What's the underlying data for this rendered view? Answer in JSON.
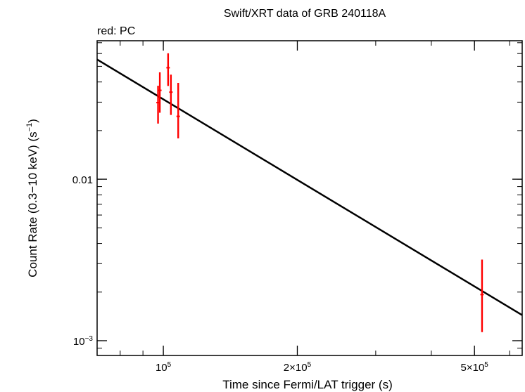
{
  "chart_data": {
    "type": "scatter",
    "title": "Swift/XRT data of GRB 240118A",
    "subtitle": "red: PC",
    "xlabel": "Time since Fermi/LAT trigger (s)",
    "ylabel": "Count Rate (0.3−10 keV) (s",
    "ylabel_sup": "−1",
    "ylabel_end": ")",
    "x_scale": "log",
    "y_scale": "log",
    "xlim": [
      71000,
      640000
    ],
    "ylim": [
      0.00081,
      0.072
    ],
    "x_ticks": [
      {
        "value": 100000,
        "mant": "10",
        "exp": "5"
      },
      {
        "value": 200000,
        "mant": "2×10",
        "exp": "5"
      },
      {
        "value": 500000,
        "mant": "5×10",
        "exp": "5"
      }
    ],
    "y_ticks": [
      {
        "value": 0.01,
        "mant": "0.01",
        "exp": ""
      },
      {
        "value": 0.001,
        "mant": "10",
        "exp": "−3"
      }
    ],
    "series": [
      {
        "color": "#ff0000",
        "points": [
          {
            "x": 97300,
            "y": 0.0298,
            "y_lo": 0.0221,
            "y_hi": 0.0379
          },
          {
            "x": 98200,
            "y": 0.0355,
            "y_lo": 0.0258,
            "y_hi": 0.0459
          },
          {
            "x": 102500,
            "y": 0.049,
            "y_lo": 0.0378,
            "y_hi": 0.0602
          },
          {
            "x": 104000,
            "y": 0.0346,
            "y_lo": 0.025,
            "y_hi": 0.0444
          },
          {
            "x": 108000,
            "y": 0.0245,
            "y_lo": 0.0179,
            "y_hi": 0.0395
          },
          {
            "x": 520000,
            "y": 0.00193,
            "y_lo": 0.00113,
            "y_hi": 0.00318
          }
        ]
      }
    ],
    "fit_line": {
      "color": "#000000",
      "points": [
        {
          "x": 71000,
          "y": 0.0551
        },
        {
          "x": 640000,
          "y": 0.00144
        }
      ]
    },
    "grid": false,
    "legend": "none"
  }
}
